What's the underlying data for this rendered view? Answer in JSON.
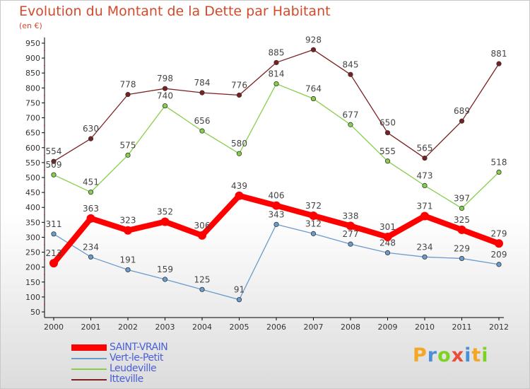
{
  "chart_data": {
    "type": "line",
    "title": "Evolution du Montant de la Dette par Habitant",
    "subtitle": "(en €)",
    "x": [
      "2000",
      "2001",
      "2002",
      "2003",
      "2004",
      "2005",
      "2006",
      "2007",
      "2008",
      "2009",
      "2010",
      "2011",
      "2012"
    ],
    "y_ticks": [
      50,
      100,
      150,
      200,
      250,
      300,
      350,
      400,
      450,
      500,
      550,
      600,
      650,
      700,
      750,
      800,
      850,
      900,
      950
    ],
    "ylim": [
      50,
      950
    ],
    "grid": false,
    "legend_position": "bottom-left",
    "series": [
      {
        "name": "Itteville",
        "color": "#7a2020",
        "values": [
          554,
          630,
          778,
          798,
          784,
          776,
          885,
          928,
          845,
          650,
          565,
          689,
          881
        ]
      },
      {
        "name": "Leudeville",
        "color": "#86cf4c",
        "values": [
          509,
          451,
          575,
          740,
          656,
          580,
          814,
          764,
          677,
          555,
          473,
          397,
          518
        ]
      },
      {
        "name": "Vert-le-Petit",
        "color": "#6a9ccc",
        "values": [
          311,
          234,
          191,
          159,
          125,
          91,
          343,
          312,
          277,
          248,
          234,
          229,
          209
        ]
      },
      {
        "name": "SAINT-VRAIN",
        "color": "#ff0000",
        "values": [
          213,
          363,
          323,
          352,
          306,
          439,
          406,
          372,
          338,
          301,
          371,
          325,
          279
        ]
      }
    ]
  },
  "legend": [
    {
      "label": "SAINT-VRAIN",
      "color": "#ff0000"
    },
    {
      "label": "Vert-le-Petit",
      "color": "#6a9ccc"
    },
    {
      "label": "Leudeville",
      "color": "#86cf4c"
    },
    {
      "label": "Itteville",
      "color": "#7a2020"
    }
  ],
  "logo": {
    "text": "Proxiti",
    "letters": [
      "P",
      "r",
      "o",
      "x",
      "i",
      "t",
      "i"
    ],
    "colors": [
      "#f5a623",
      "#4a90d9",
      "#7ed321",
      "#e94e3c",
      "#4a90d9",
      "#f5a623",
      "#7ed321"
    ]
  }
}
